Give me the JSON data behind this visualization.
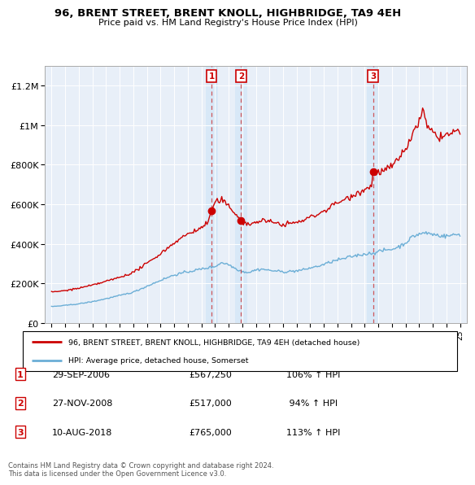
{
  "title": "96, BRENT STREET, BRENT KNOLL, HIGHBRIDGE, TA9 4EH",
  "subtitle": "Price paid vs. HM Land Registry's House Price Index (HPI)",
  "legend_line1": "96, BRENT STREET, BRENT KNOLL, HIGHBRIDGE, TA9 4EH (detached house)",
  "legend_line2": "HPI: Average price, detached house, Somerset",
  "footer": "Contains HM Land Registry data © Crown copyright and database right 2024.\nThis data is licensed under the Open Government Licence v3.0.",
  "transactions": [
    {
      "num": 1,
      "date": "29-SEP-2006",
      "year": 2006.75,
      "price": 567250,
      "pct": "106%"
    },
    {
      "num": 2,
      "date": "27-NOV-2008",
      "year": 2008.92,
      "price": 517000,
      "pct": "94%"
    },
    {
      "num": 3,
      "date": "10-AUG-2018",
      "year": 2018.61,
      "price": 765000,
      "pct": "113%"
    }
  ],
  "hpi_color": "#6baed6",
  "price_color": "#cc0000",
  "background_color": "#e8eff8",
  "ylim": [
    0,
    1300000
  ],
  "xlim_start": 1994.5,
  "xlim_end": 2025.5,
  "yticks": [
    0,
    200000,
    400000,
    600000,
    800000,
    1000000,
    1200000
  ],
  "ytick_labels": [
    "£0",
    "£200K",
    "£400K",
    "£600K",
    "£800K",
    "£1M",
    "£1.2M"
  ]
}
